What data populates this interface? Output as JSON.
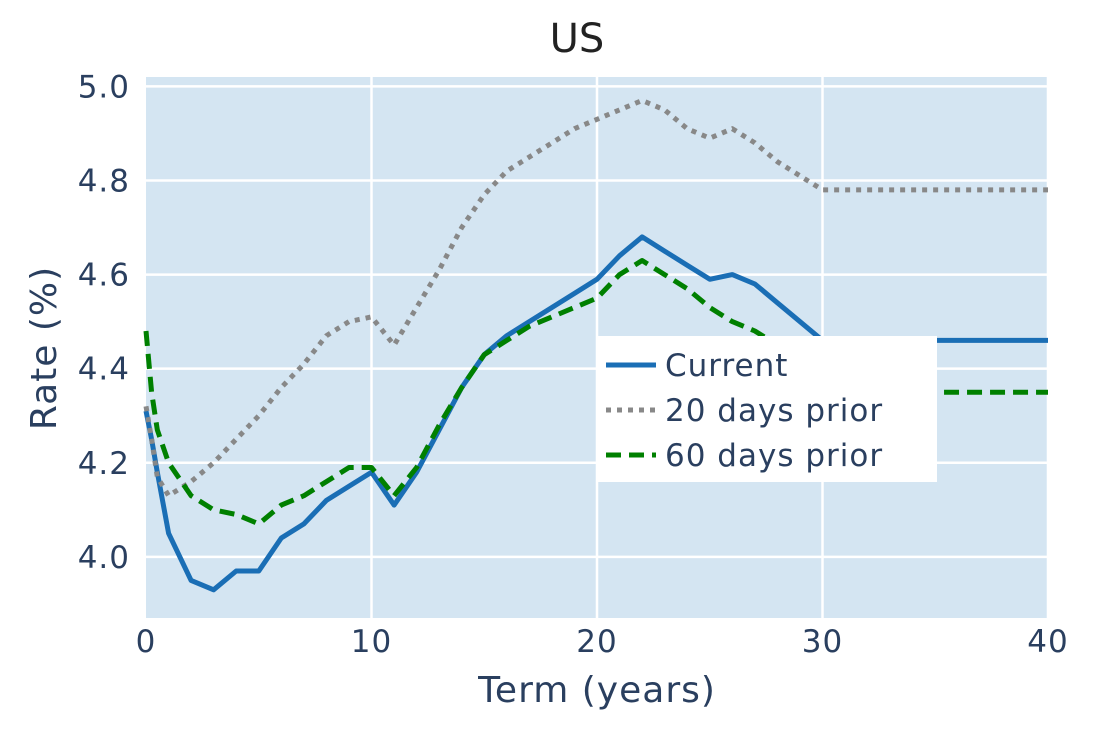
{
  "chart_data": {
    "type": "line",
    "title": "US",
    "xlabel": "Term (years)",
    "ylabel": "Rate (%)",
    "xlim": [
      0,
      40
    ],
    "ylim": [
      3.87,
      5.02
    ],
    "xticks": [
      "0",
      "10",
      "20",
      "30",
      "40"
    ],
    "xtick_values": [
      0,
      10,
      20,
      30,
      40
    ],
    "yticks": [
      "4.0",
      "4.2",
      "4.4",
      "4.6",
      "4.8",
      "5.0"
    ],
    "ytick_values": [
      4.0,
      4.2,
      4.4,
      4.6,
      4.8,
      5.0
    ],
    "grid": true,
    "plot_bg": "#d4e5f2",
    "legend_position": "center-right",
    "series": [
      {
        "name": "Current",
        "color": "#1a6eb5",
        "dash": "solid",
        "x": [
          0,
          0.25,
          0.5,
          1,
          2,
          3,
          4,
          5,
          6,
          7,
          8,
          9,
          10,
          11,
          12,
          13,
          14,
          15,
          16,
          17,
          18,
          19,
          20,
          21,
          22,
          23,
          24,
          25,
          26,
          27,
          28,
          29,
          30,
          35,
          40
        ],
        "y": [
          4.31,
          4.25,
          4.18,
          4.05,
          3.95,
          3.93,
          3.97,
          3.97,
          4.04,
          4.07,
          4.12,
          4.15,
          4.18,
          4.11,
          4.18,
          4.27,
          4.36,
          4.43,
          4.47,
          4.5,
          4.53,
          4.56,
          4.59,
          4.64,
          4.68,
          4.65,
          4.62,
          4.59,
          4.6,
          4.58,
          4.54,
          4.5,
          4.46,
          4.46,
          4.46
        ]
      },
      {
        "name": "20 days prior",
        "color": "#888888",
        "dash": "dot",
        "x": [
          0,
          0.25,
          0.5,
          1,
          2,
          3,
          4,
          5,
          6,
          7,
          8,
          9,
          10,
          11,
          12,
          13,
          14,
          15,
          16,
          17,
          18,
          19,
          20,
          21,
          22,
          23,
          24,
          25,
          26,
          27,
          28,
          29,
          30,
          35,
          40
        ],
        "y": [
          4.32,
          4.25,
          4.17,
          4.13,
          4.16,
          4.2,
          4.25,
          4.3,
          4.36,
          4.41,
          4.47,
          4.5,
          4.51,
          4.45,
          4.53,
          4.61,
          4.7,
          4.77,
          4.82,
          4.85,
          4.88,
          4.91,
          4.93,
          4.95,
          4.97,
          4.95,
          4.91,
          4.89,
          4.91,
          4.88,
          4.84,
          4.81,
          4.78,
          4.78,
          4.78
        ]
      },
      {
        "name": "60 days prior",
        "color": "#008000",
        "dash": "dash",
        "x": [
          0,
          0.25,
          0.5,
          1,
          2,
          3,
          4,
          5,
          6,
          7,
          8,
          9,
          10,
          11,
          12,
          13,
          14,
          15,
          16,
          17,
          18,
          19,
          20,
          21,
          22,
          23,
          24,
          25,
          26,
          27,
          28,
          29,
          30,
          35,
          40
        ],
        "y": [
          4.48,
          4.35,
          4.27,
          4.2,
          4.13,
          4.1,
          4.09,
          4.07,
          4.11,
          4.13,
          4.16,
          4.19,
          4.19,
          4.13,
          4.19,
          4.28,
          4.36,
          4.43,
          4.46,
          4.49,
          4.51,
          4.53,
          4.55,
          4.6,
          4.63,
          4.6,
          4.57,
          4.53,
          4.5,
          4.48,
          4.45,
          4.42,
          4.39,
          4.35,
          4.35
        ]
      }
    ]
  }
}
